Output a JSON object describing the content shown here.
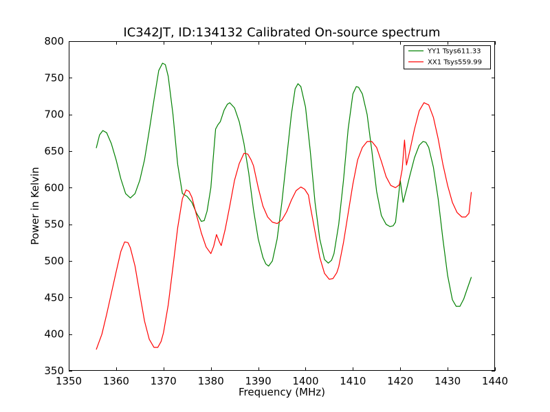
{
  "chart_data": {
    "type": "line",
    "title": "IC342JT, ID:134132 Calibrated On-source spectrum",
    "xlabel": "Frequency (MHz)",
    "ylabel": "Power in Kelvin",
    "xlim": [
      1350,
      1440
    ],
    "ylim": [
      350,
      800
    ],
    "xticks": [
      1350,
      1360,
      1370,
      1380,
      1390,
      1400,
      1410,
      1420,
      1430,
      1440
    ],
    "yticks": [
      350,
      400,
      450,
      500,
      550,
      600,
      650,
      700,
      750,
      800
    ],
    "grid": false,
    "legend_position": "top-right",
    "series": [
      {
        "name": "YY1 Tsys611.33",
        "color": "#008000",
        "x": [
          1355.8,
          1356.5,
          1357.2,
          1358,
          1359,
          1360,
          1361,
          1362,
          1363,
          1364,
          1365,
          1366,
          1367,
          1368,
          1369,
          1369.8,
          1370.4,
          1371,
          1372,
          1373,
          1374,
          1375,
          1376,
          1377,
          1378,
          1378.6,
          1379.2,
          1380,
          1380.5,
          1381,
          1381.5,
          1382,
          1382.8,
          1383.5,
          1384,
          1385,
          1386,
          1387,
          1388,
          1389,
          1390,
          1391,
          1391.6,
          1392.2,
          1393,
          1394,
          1395,
          1396,
          1397,
          1397.8,
          1398.4,
          1399,
          1400,
          1401,
          1402,
          1403,
          1404,
          1404.8,
          1405.5,
          1406,
          1407,
          1408,
          1409,
          1410,
          1410.7,
          1411.2,
          1412,
          1413,
          1414,
          1415,
          1416,
          1417,
          1417.8,
          1418.5,
          1419,
          1420,
          1420.6,
          1421,
          1421.4,
          1422,
          1423,
          1424,
          1424.8,
          1425.4,
          1426,
          1427,
          1428,
          1429,
          1430,
          1431,
          1431.8,
          1432.6,
          1433.4,
          1434.2,
          1435
        ],
        "y": [
          654,
          672,
          678,
          675,
          660,
          638,
          612,
          592,
          586,
          592,
          610,
          638,
          678,
          720,
          760,
          770,
          768,
          752,
          700,
          632,
          592,
          588,
          580,
          565,
          554,
          555,
          568,
          600,
          640,
          680,
          686,
          690,
          706,
          714,
          716,
          709,
          690,
          660,
          620,
          570,
          530,
          505,
          496,
          493,
          500,
          530,
          580,
          640,
          700,
          735,
          742,
          738,
          710,
          650,
          580,
          530,
          502,
          497,
          501,
          510,
          550,
          610,
          680,
          728,
          738,
          737,
          728,
          700,
          650,
          595,
          562,
          550,
          547,
          548,
          553,
          610,
          580,
          590,
          600,
          616,
          641,
          658,
          663,
          662,
          655,
          628,
          585,
          530,
          480,
          447,
          438,
          438,
          448,
          463,
          478
        ]
      },
      {
        "name": "XX1 Tsys559.99",
        "color": "#ff0000",
        "x": [
          1355.8,
          1357,
          1358,
          1359,
          1360,
          1361,
          1361.8,
          1362.5,
          1363,
          1364,
          1365,
          1366,
          1367,
          1368,
          1368.8,
          1369.5,
          1370,
          1371,
          1372,
          1373,
          1374,
          1374.8,
          1375.4,
          1376,
          1377,
          1378,
          1379,
          1380,
          1380.6,
          1381.2,
          1381.8,
          1382.2,
          1383,
          1384,
          1385,
          1386,
          1387,
          1387.8,
          1388.5,
          1389,
          1390,
          1391,
          1392,
          1393,
          1394,
          1395,
          1396,
          1397,
          1398,
          1399,
          1399.8,
          1400.6,
          1401,
          1402,
          1403,
          1404,
          1405,
          1405.8,
          1406.6,
          1407,
          1408,
          1409,
          1410,
          1411,
          1412,
          1413,
          1414,
          1415,
          1416,
          1417,
          1418,
          1419,
          1419.8,
          1420.4,
          1420.9,
          1421.3,
          1422,
          1423,
          1424,
          1425,
          1426,
          1427,
          1428,
          1429,
          1430,
          1431,
          1432,
          1433,
          1433.8,
          1434.5,
          1435
        ],
        "y": [
          379,
          400,
          427,
          456,
          485,
          513,
          526,
          525,
          518,
          493,
          455,
          418,
          393,
          382,
          382,
          390,
          402,
          440,
          492,
          545,
          585,
          597,
          595,
          587,
          562,
          538,
          519,
          510,
          520,
          536,
          526,
          521,
          542,
          575,
          610,
          633,
          647,
          646,
          638,
          630,
          600,
          575,
          560,
          553,
          551,
          556,
          567,
          583,
          596,
          601,
          598,
          590,
          575,
          540,
          505,
          483,
          475,
          476,
          484,
          492,
          525,
          565,
          605,
          638,
          655,
          663,
          663,
          655,
          636,
          615,
          603,
          600,
          604,
          625,
          665,
          631,
          650,
          680,
          705,
          716,
          713,
          696,
          667,
          632,
          603,
          580,
          566,
          560,
          560,
          565,
          594
        ]
      }
    ]
  }
}
